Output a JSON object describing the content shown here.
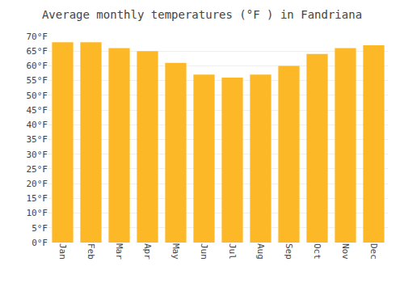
{
  "chart_data": {
    "type": "bar",
    "title": "Average monthly temperatures (°F ) in Fandriana",
    "categories": [
      "Jan",
      "Feb",
      "Mar",
      "Apr",
      "May",
      "Jun",
      "Jul",
      "Aug",
      "Sep",
      "Oct",
      "Nov",
      "Dec"
    ],
    "values": [
      68,
      68,
      66,
      65,
      61,
      57,
      56,
      57,
      60,
      64,
      66,
      67
    ],
    "color": "#FDB827",
    "ylim": [
      0,
      70
    ],
    "yticks": [
      {
        "value": 0,
        "label": "0°F"
      },
      {
        "value": 5,
        "label": "5°F"
      },
      {
        "value": 10,
        "label": "10°F"
      },
      {
        "value": 15,
        "label": "15°F"
      },
      {
        "value": 20,
        "label": "20°F"
      },
      {
        "value": 25,
        "label": "25°F"
      },
      {
        "value": 30,
        "label": "30°F"
      },
      {
        "value": 35,
        "label": "35°F"
      },
      {
        "value": 40,
        "label": "40°F"
      },
      {
        "value": 45,
        "label": "45°F"
      },
      {
        "value": 50,
        "label": "50°F"
      },
      {
        "value": 55,
        "label": "55°F"
      },
      {
        "value": 60,
        "label": "60°F"
      },
      {
        "value": 65,
        "label": "65°F"
      },
      {
        "value": 70,
        "label": "70°F"
      }
    ],
    "grid": true
  }
}
